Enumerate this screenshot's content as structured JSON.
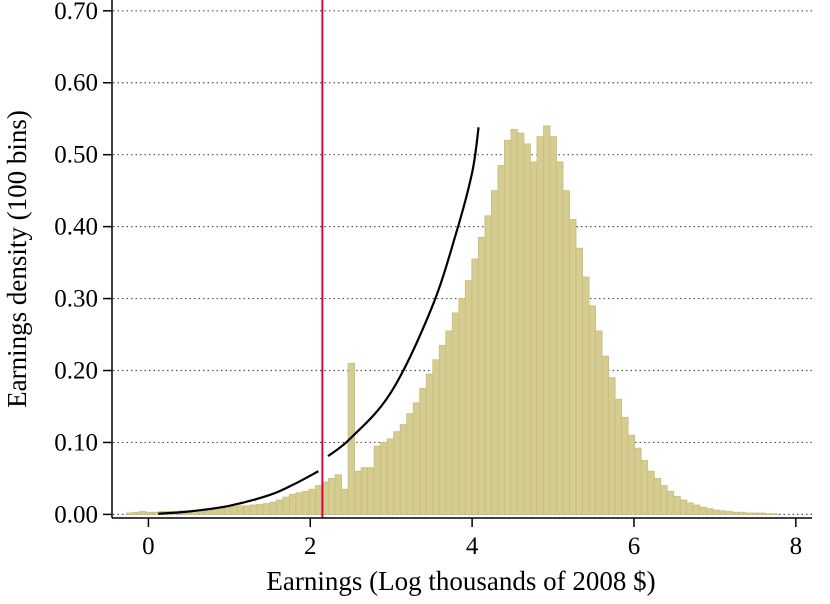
{
  "chart_data": {
    "type": "bar",
    "xlabel": "Earnings (Log thousands of 2008 $)",
    "ylabel": "Earnings density (100 bins)",
    "xlim": [
      -0.45,
      8.2
    ],
    "ylim": [
      -0.005,
      0.715
    ],
    "x_ticks": [
      {
        "value": 0,
        "label": "0"
      },
      {
        "value": 2,
        "label": "2"
      },
      {
        "value": 4,
        "label": "4"
      },
      {
        "value": 6,
        "label": "6"
      },
      {
        "value": 8,
        "label": "8"
      }
    ],
    "y_ticks": [
      {
        "value": 0.0,
        "label": "0.00"
      },
      {
        "value": 0.1,
        "label": "0.10"
      },
      {
        "value": 0.2,
        "label": "0.20"
      },
      {
        "value": 0.3,
        "label": "0.30"
      },
      {
        "value": 0.4,
        "label": "0.40"
      },
      {
        "value": 0.5,
        "label": "0.50"
      },
      {
        "value": 0.6,
        "label": "0.60"
      },
      {
        "value": 0.7,
        "label": "0.70"
      }
    ],
    "grid": "horizontal dotted",
    "bin_start": -0.27,
    "bin_width": 0.0805,
    "values": [
      0.002,
      0.003,
      0.004,
      0.003,
      0.003,
      0.004,
      0.004,
      0.004,
      0.005,
      0.005,
      0.006,
      0.006,
      0.007,
      0.008,
      0.009,
      0.01,
      0.011,
      0.012,
      0.012,
      0.013,
      0.014,
      0.015,
      0.017,
      0.02,
      0.024,
      0.028,
      0.03,
      0.032,
      0.035,
      0.04,
      0.045,
      0.05,
      0.055,
      0.035,
      0.21,
      0.06,
      0.065,
      0.065,
      0.095,
      0.1,
      0.105,
      0.115,
      0.125,
      0.14,
      0.155,
      0.175,
      0.195,
      0.215,
      0.235,
      0.255,
      0.28,
      0.3,
      0.325,
      0.355,
      0.385,
      0.415,
      0.45,
      0.485,
      0.52,
      0.535,
      0.53,
      0.515,
      0.49,
      0.525,
      0.54,
      0.525,
      0.49,
      0.45,
      0.41,
      0.37,
      0.33,
      0.29,
      0.255,
      0.22,
      0.19,
      0.16,
      0.135,
      0.11,
      0.092,
      0.075,
      0.06,
      0.05,
      0.04,
      0.032,
      0.025,
      0.02,
      0.016,
      0.013,
      0.01,
      0.008,
      0.006,
      0.005,
      0.004,
      0.003,
      0.003,
      0.002,
      0.002,
      0.002,
      0.001,
      0.001
    ],
    "bar_color": "#d4cc90",
    "bar_edge_color": "#c8be7a",
    "reference_line": {
      "x": 2.15,
      "color": "#e0003a"
    },
    "fit_curves": [
      {
        "color": "#000000",
        "x": [
          0.12,
          0.5,
          1.0,
          1.5,
          1.8,
          2.1
        ],
        "y": [
          0.001,
          0.004,
          0.012,
          0.027,
          0.042,
          0.06
        ]
      },
      {
        "color": "#000000",
        "x": [
          2.22,
          2.5,
          3.0,
          3.5,
          3.8,
          4.0,
          4.08
        ],
        "y": [
          0.081,
          0.106,
          0.17,
          0.287,
          0.39,
          0.475,
          0.538
        ]
      }
    ]
  }
}
